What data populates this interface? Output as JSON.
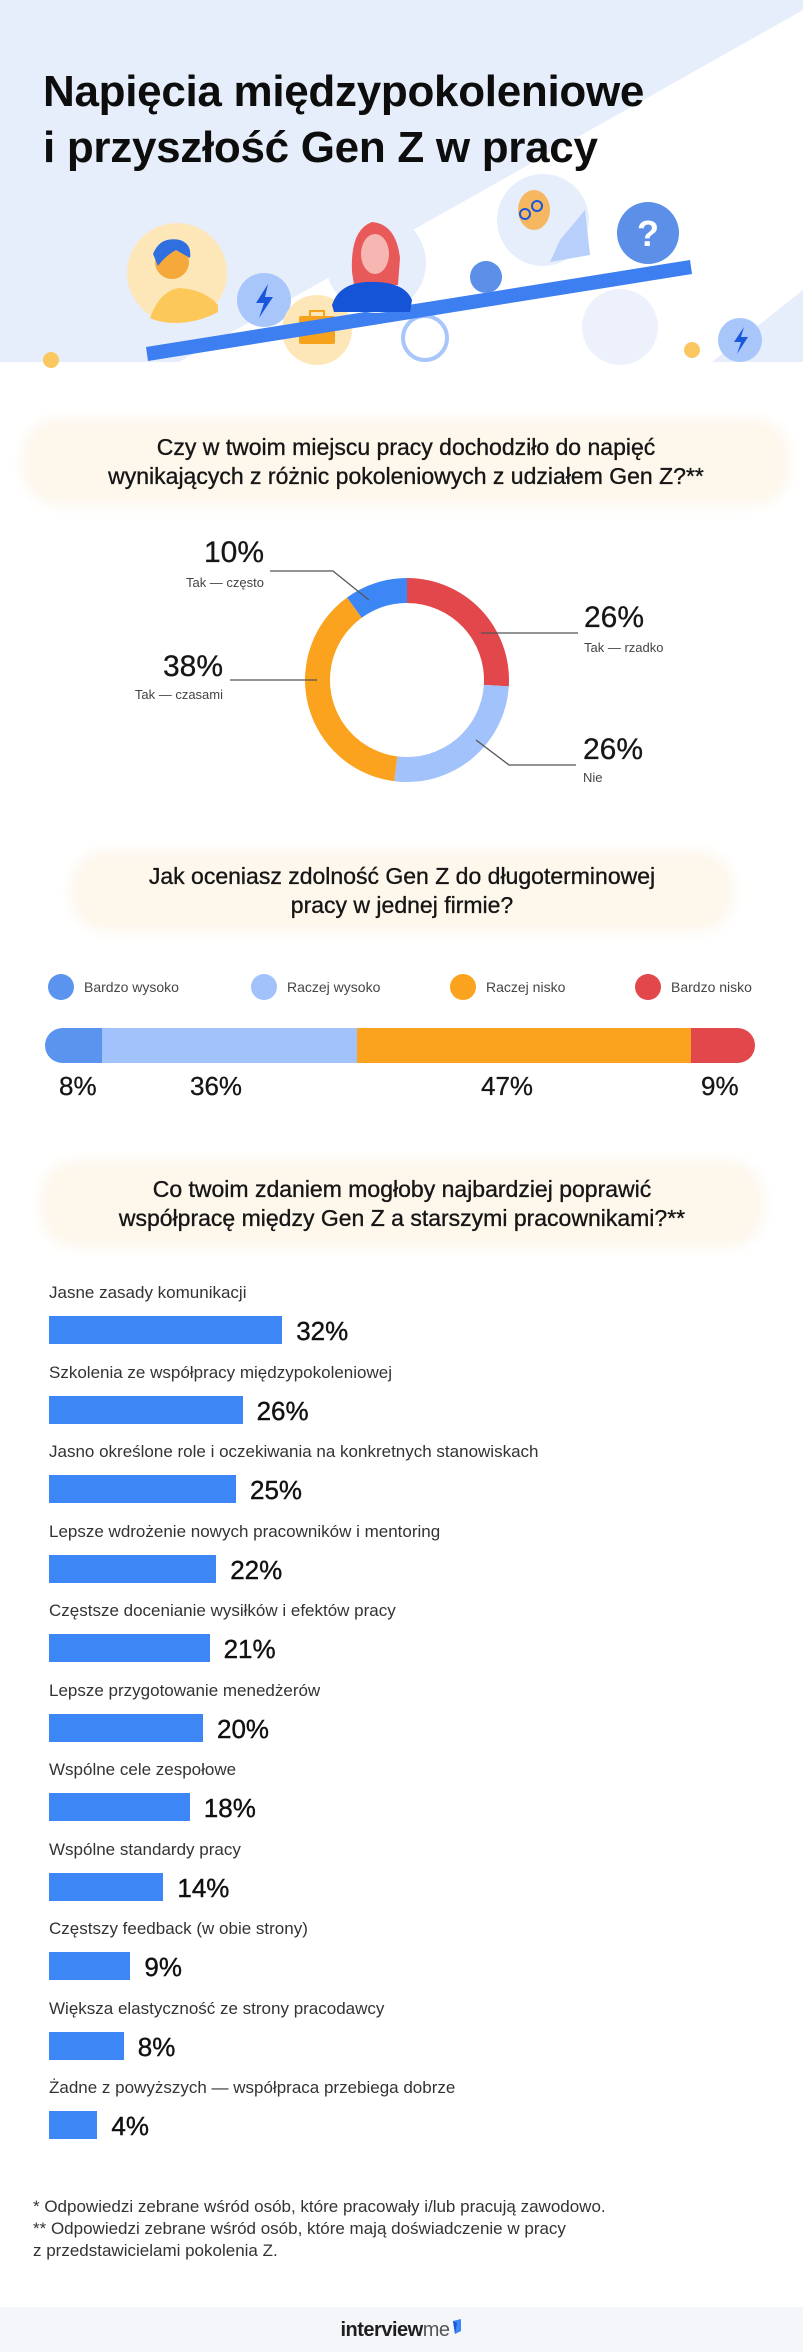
{
  "title": {
    "line1": "Napięcia międzypokoleniowe",
    "line2": "i przyszłość Gen Z w pracy"
  },
  "colors": {
    "hero_bg": "#e6eefc",
    "accent_blue": "#3d86f5",
    "light_blue": "#a1c2fa",
    "orange": "#fba31e",
    "red": "#e2474b",
    "question_bg": "#fdf7ec"
  },
  "illustration": {
    "icons": [
      "person-young-icon",
      "lightning-icon",
      "briefcase-icon",
      "person-woman-icon",
      "person-elder-icon",
      "question-mark-icon"
    ],
    "question_glyph": "?"
  },
  "chart_data": [
    {
      "type": "pie",
      "style": "donut",
      "title": "Czy w twoim miejscu pracy dochodziło do napięć wynikających z różnic pokoleniowych z udziałem Gen Z?**",
      "title_lines": [
        "Czy w twoim miejscu pracy dochodziło do napięć",
        "wynikających z różnic pokoleniowych z udziałem Gen Z?**"
      ],
      "categories": [
        "Tak — rzadko",
        "Nie",
        "Tak — czasami",
        "Tak — często"
      ],
      "values": [
        26,
        26,
        38,
        10
      ],
      "value_labels": [
        "26%",
        "26%",
        "38%",
        "10%"
      ],
      "colors": [
        "#e2474b",
        "#a1c2fa",
        "#fba31e",
        "#3d86f5"
      ]
    },
    {
      "type": "bar",
      "style": "stacked-horizontal-100",
      "title": "Jak oceniasz zdolność Gen Z do długoterminowej pracy w jednej firmie?",
      "title_lines": [
        "Jak oceniasz zdolność Gen Z do długoterminowej",
        "pracy w jednej firmie?"
      ],
      "legend_position": "top",
      "categories": [
        "Bardzo wysoko",
        "Raczej wysoko",
        "Raczej nisko",
        "Bardzo nisko"
      ],
      "values": [
        8,
        36,
        47,
        9
      ],
      "value_labels": [
        "8%",
        "36%",
        "47%",
        "9%"
      ],
      "colors": [
        "#5a94ef",
        "#a1c2fa",
        "#fba31e",
        "#e2474b"
      ]
    },
    {
      "type": "bar",
      "style": "horizontal",
      "title": "Co twoim zdaniem mogłoby najbardziej poprawić współpracę między Gen Z a starszymi pracownikami?**",
      "title_lines": [
        "Co twoim zdaniem mogłoby najbardziej poprawić",
        "współpracę między Gen Z a starszymi pracownikami?**"
      ],
      "categories": [
        "Jasne zasady komunikacji",
        "Szkolenia ze współpracy międzypokoleniowej",
        "Jasno określone role i oczekiwania na konkretnych stanowiskach",
        "Lepsze wdrożenie nowych pracowników i mentoring",
        "Częstsze docenianie wysiłków i efektów pracy",
        "Lepsze przygotowanie menedżerów",
        "Wspólne cele zespołowe",
        "Wspólne standardy pracy",
        "Częstszy feedback (w obie strony)",
        "Większa elastyczność ze strony pracodawcy",
        "Żadne z powyższych — współpraca przebiega dobrze"
      ],
      "values": [
        32,
        26,
        25,
        22,
        21,
        20,
        18,
        14,
        9,
        8,
        4
      ],
      "value_labels": [
        "32%",
        "26%",
        "25%",
        "22%",
        "21%",
        "20%",
        "18%",
        "14%",
        "9%",
        "8%",
        "4%"
      ],
      "color": "#3d86f5"
    }
  ],
  "footnotes": [
    "* Odpowiedzi zebrane wśród osób, które pracowały i/lub pracują zawodowo.",
    "** Odpowiedzi zebrane wśród osób, które mają doświadczenie w pracy",
    "z przedstawicielami pokolenia Z."
  ],
  "footer": {
    "logo_part1": "interview",
    "logo_part2": "me"
  }
}
